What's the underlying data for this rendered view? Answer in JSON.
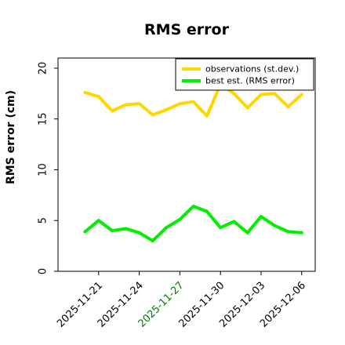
{
  "chart_data": {
    "type": "line",
    "title": "RMS error",
    "xlabel": "",
    "ylabel": "RMS error (cm)",
    "ylim": [
      0,
      21
    ],
    "yticks": [
      0,
      5,
      10,
      15,
      20
    ],
    "xlim": [
      "2025-11-18",
      "2025-12-07"
    ],
    "xticks": [
      "2025-11-21",
      "2025-11-24",
      "2025-11-27",
      "2025-11-30",
      "2025-12-03",
      "2025-12-06"
    ],
    "xtick_colors": [
      "#000000",
      "#000000",
      "#008000",
      "#000000",
      "#000000",
      "#000000"
    ],
    "x": [
      "2025-11-20",
      "2025-11-21",
      "2025-11-22",
      "2025-11-23",
      "2025-11-24",
      "2025-11-25",
      "2025-11-26",
      "2025-11-27",
      "2025-11-28",
      "2025-11-29",
      "2025-11-30",
      "2025-12-01",
      "2025-12-02",
      "2025-12-03",
      "2025-12-04",
      "2025-12-05",
      "2025-12-06"
    ],
    "series": [
      {
        "name": "observations (st.dev.)",
        "color": "#ffd700",
        "values": [
          17.6,
          17.2,
          15.8,
          16.4,
          16.5,
          15.4,
          15.9,
          16.5,
          16.7,
          15.3,
          18.4,
          17.5,
          16.1,
          17.4,
          17.5,
          16.2,
          17.4
        ]
      },
      {
        "name": "best est. (RMS error)",
        "color": "#00ee00",
        "values": [
          3.9,
          5.0,
          4.0,
          4.2,
          3.8,
          3.0,
          4.3,
          5.1,
          6.4,
          5.9,
          4.3,
          4.9,
          3.8,
          5.4,
          4.5,
          3.9,
          3.8
        ]
      }
    ],
    "grid": false,
    "legend_position": "top-right"
  }
}
